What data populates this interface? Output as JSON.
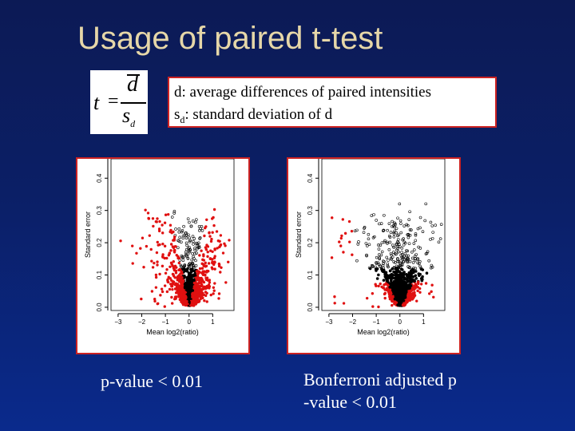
{
  "title": "Usage of paired t-test",
  "formula": {
    "lhs": "t",
    "eq": "=",
    "numerator": "d",
    "denominator": "s",
    "denominator_sub": "d"
  },
  "definitions": {
    "line1": "d: average differences of paired intensities",
    "line2_pre": "s",
    "line2_sub": "d",
    "line2_post": ": standard deviation of d"
  },
  "plots": [
    {
      "ylabel": "Standard error",
      "xlabel": "Mean log2(ratio)",
      "xticks": [
        "−3",
        "−2",
        "−1",
        "0",
        "1"
      ],
      "yticks": [
        "0.0",
        "0.1",
        "0.2",
        "0.3",
        "0.4"
      ],
      "caption": "p-value < 0.01",
      "colors": {
        "significant": "#e01010",
        "other": "#000000"
      }
    },
    {
      "ylabel": "Standard error",
      "xlabel": "Mean log2(ratio)",
      "xticks": [
        "−3",
        "−2",
        "−1",
        "0",
        "1"
      ],
      "yticks": [
        "0.0",
        "0.1",
        "0.2",
        "0.3",
        "0.4"
      ],
      "caption_line1": "Bonferroni adjusted p",
      "caption_line2": "-value < 0.01",
      "colors": {
        "significant": "#e01010",
        "other": "#000000"
      }
    }
  ]
}
